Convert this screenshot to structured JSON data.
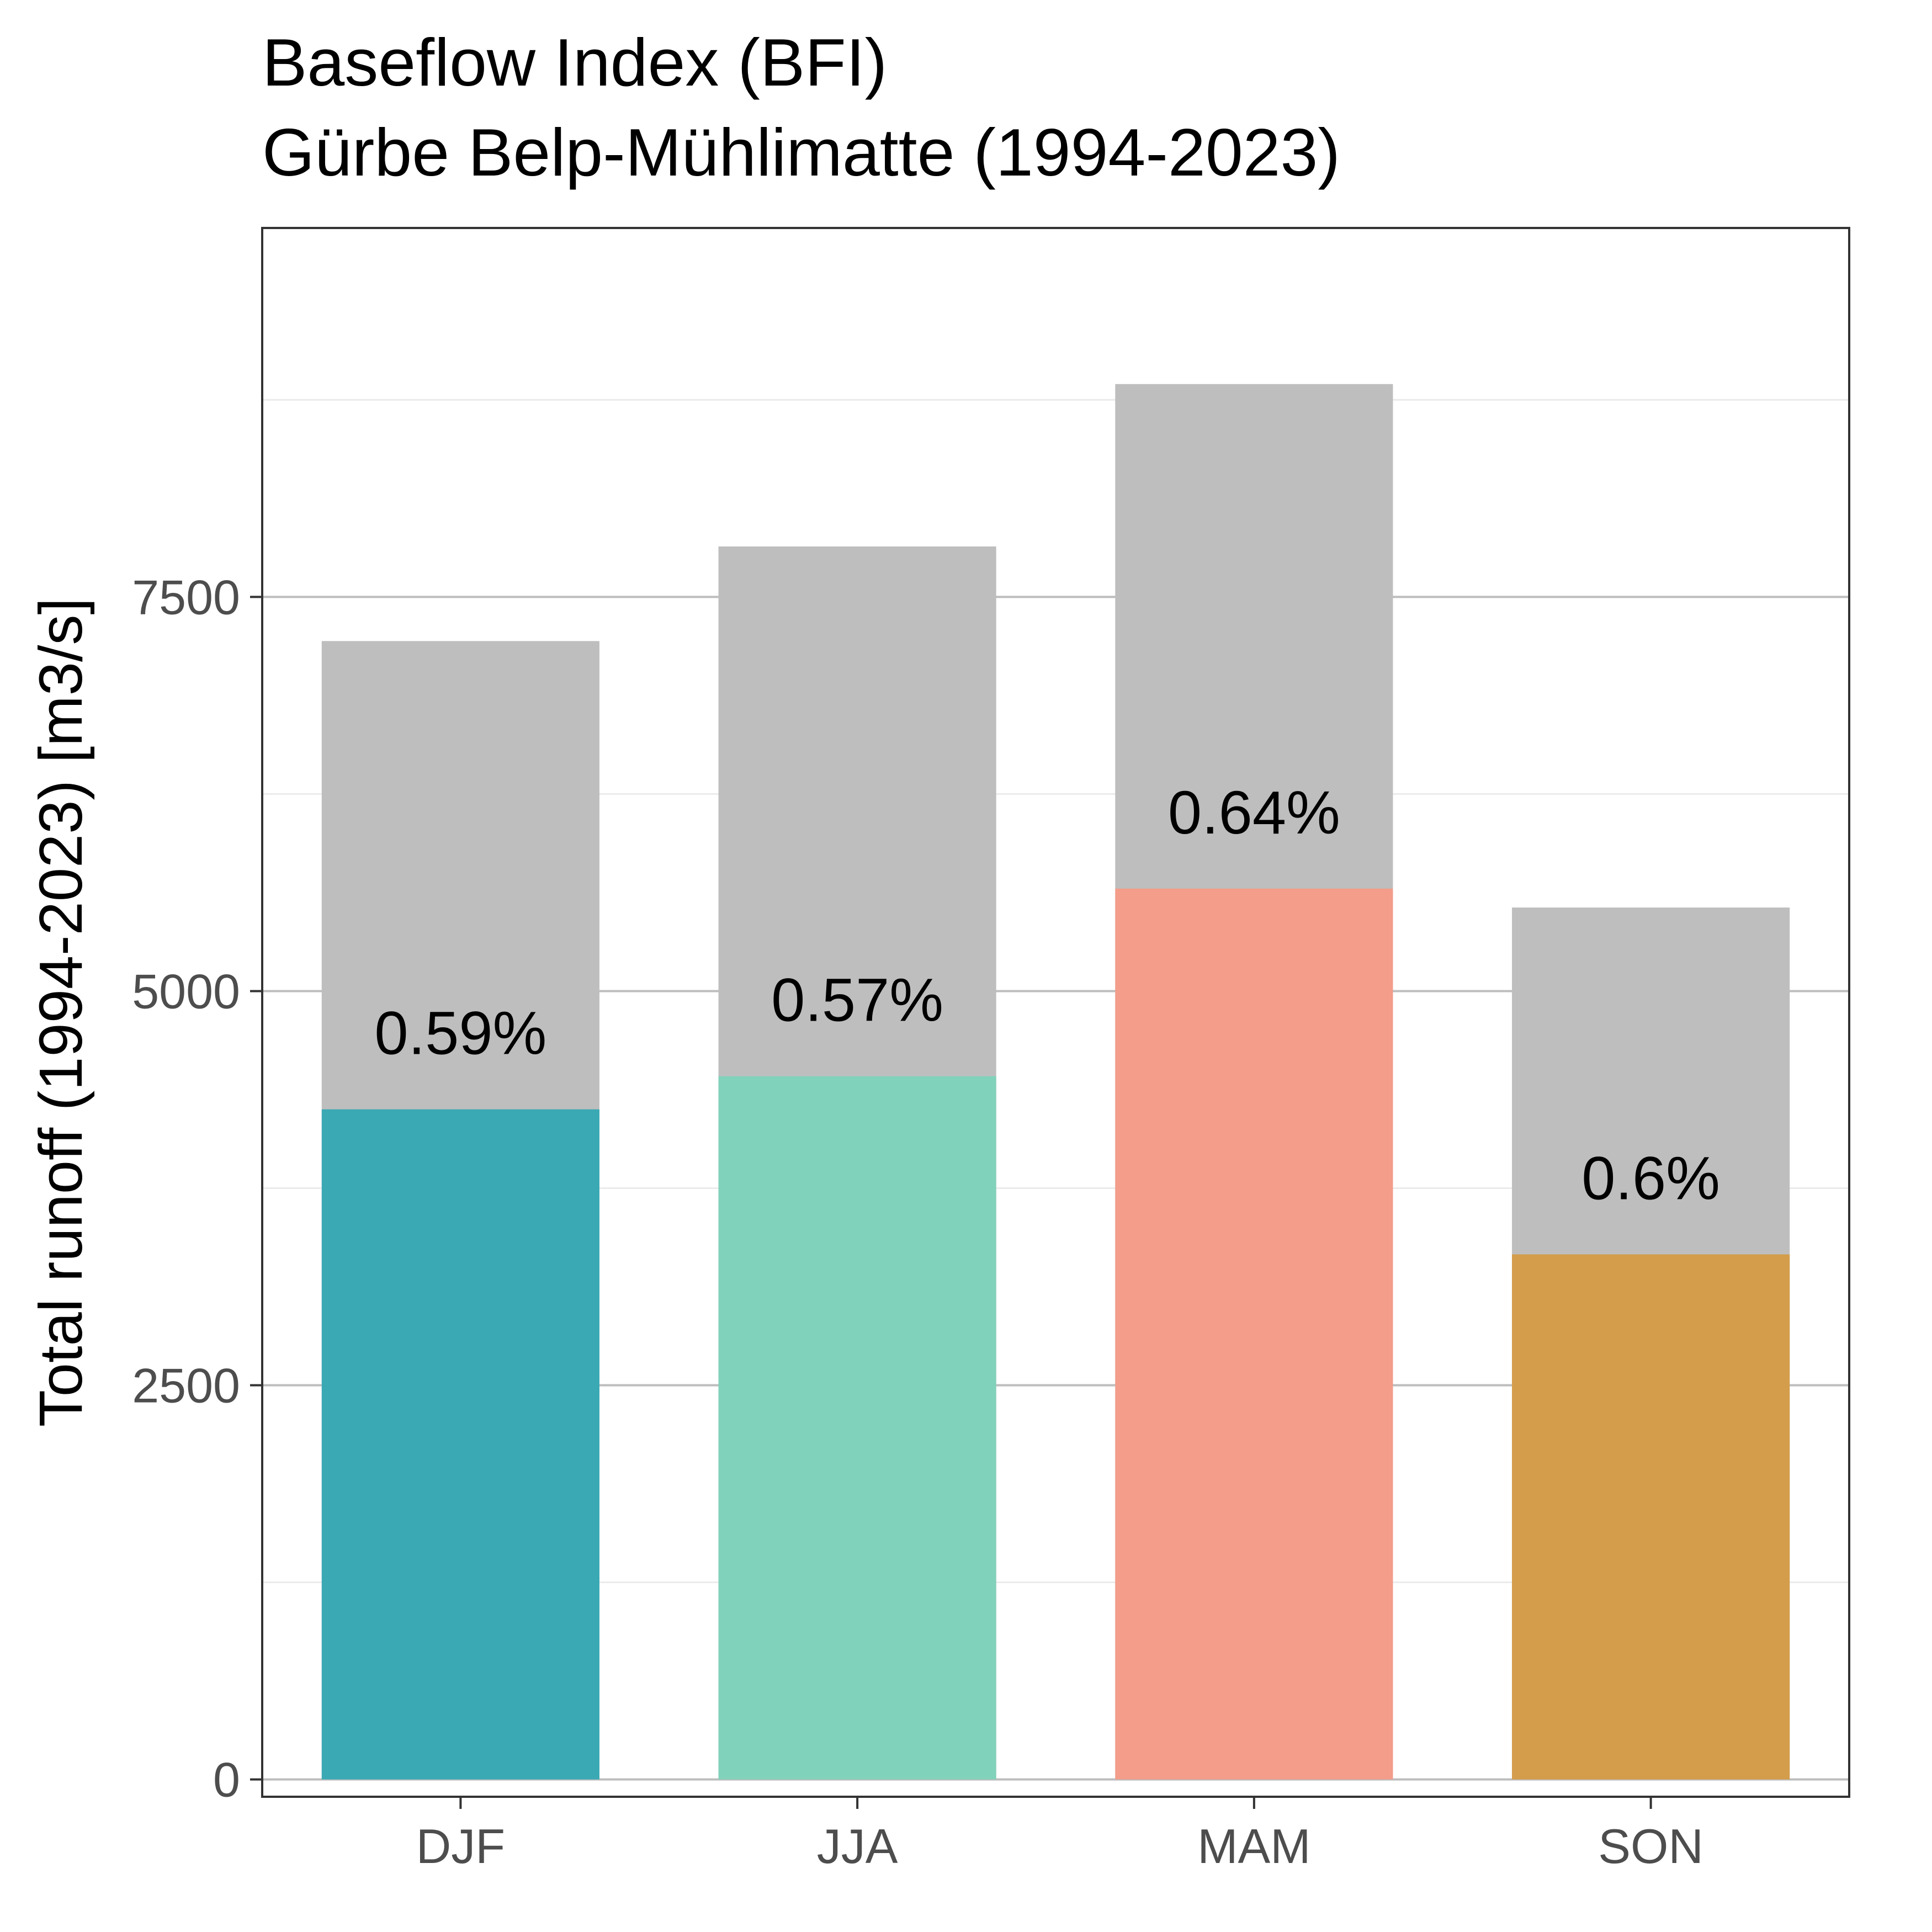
{
  "chart_data": {
    "type": "bar",
    "stacked": "overlay",
    "title": "Baseflow Index (BFI)",
    "subtitle": "Gürbe Belp-Mühlimatte (1994-2023)",
    "xlabel": "",
    "ylabel": "Total runoff (1994-2023) [m3/s]",
    "categories": [
      "DJF",
      "JJA",
      "MAM",
      "SON"
    ],
    "series": [
      {
        "values": [
          7220,
          7820,
          8850,
          5530
        ],
        "color": "#bebebe"
      },
      {
        "values": [
          4250,
          4460,
          5650,
          3330
        ],
        "colors": [
          "#3aa9b4",
          "#81d2bb",
          "#f39d8a",
          "#d49d4b"
        ]
      }
    ],
    "bar_labels": [
      "0.59%",
      "0.57%",
      "0.64%",
      "0.6%"
    ],
    "ylim": [
      -110,
      9840
    ],
    "yticks": [
      0,
      2500,
      5000,
      7500
    ],
    "ytick_labels": [
      "0",
      "2500",
      "5000",
      "7500"
    ],
    "grid": true,
    "legend": "none"
  }
}
